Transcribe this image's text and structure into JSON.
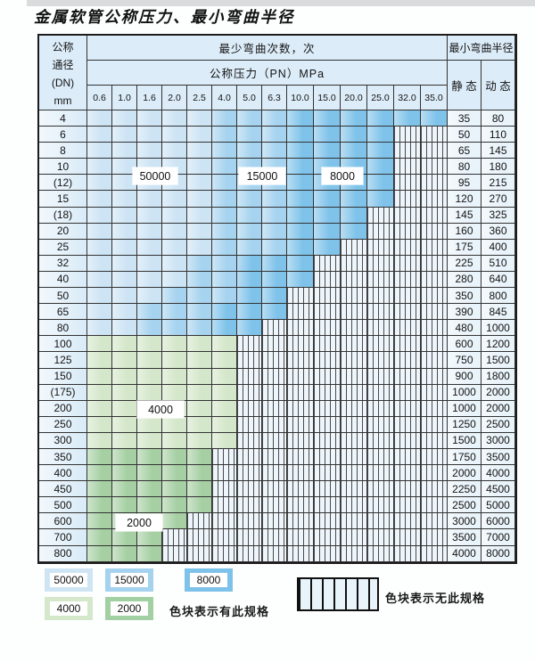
{
  "title": "金属软管公称压力、最小弯曲半径",
  "header": {
    "dn_lines": [
      "公称",
      "通径",
      "(DN)",
      "mm"
    ],
    "cycles_label": "最少弯曲次数，次",
    "pressure_label": "公称压力（PN）MPa",
    "pressures": [
      "0.6",
      "1.0",
      "1.6",
      "2.0",
      "2.5",
      "4.0",
      "5.0",
      "6.3",
      "10.0",
      "15.0",
      "20.0",
      "25.0",
      "32.0",
      "35.0"
    ],
    "radius_label": "最小弯曲半径",
    "static_label": "静 态",
    "dynamic_label": "动 态"
  },
  "zones": {
    "b1": {
      "label": "50000",
      "color": "#cde4f5"
    },
    "b2": {
      "label": "15000",
      "color": "#a6d3ef"
    },
    "b3": {
      "label": "8000",
      "color": "#7fc3ea"
    },
    "g1": {
      "label": "4000",
      "color": "#d4e7ca"
    },
    "g2": {
      "label": "2000",
      "color": "#a6d0a3"
    },
    "striped_meaning": "无此规格"
  },
  "legend": {
    "available_text": "色块表示有此规格",
    "unavailable_text": "色块表示无此规格"
  },
  "rows": [
    {
      "dn": "4",
      "static": "35",
      "dynamic": "80",
      "cells": [
        "b1",
        "b1",
        "b1",
        "b1",
        "b1",
        "b2",
        "b2",
        "b2",
        "b3",
        "b3",
        "b3",
        "b3",
        "b3",
        "b3"
      ]
    },
    {
      "dn": "6",
      "static": "50",
      "dynamic": "110",
      "cells": [
        "b1",
        "b1",
        "b1",
        "b1",
        "b1",
        "b2",
        "b2",
        "b2",
        "b3",
        "b3",
        "b3",
        "b3",
        "x",
        "x"
      ]
    },
    {
      "dn": "8",
      "static": "65",
      "dynamic": "145",
      "cells": [
        "b1",
        "b1",
        "b1",
        "b1",
        "b1",
        "b2",
        "b2",
        "b2",
        "b3",
        "b3",
        "b3",
        "b3",
        "x",
        "x"
      ]
    },
    {
      "dn": "10",
      "static": "80",
      "dynamic": "180",
      "cells": [
        "b1",
        "b1",
        "b1",
        "b1",
        "b1",
        "b2",
        "b2",
        "b2",
        "b3",
        "b3",
        "b3",
        "b3",
        "x",
        "x"
      ]
    },
    {
      "dn": "(12)",
      "static": "95",
      "dynamic": "215",
      "cells": [
        "b1",
        "b1",
        "b1",
        "b1",
        "b1",
        "b2",
        "b2",
        "b2",
        "b3",
        "b3",
        "b3",
        "b3",
        "x",
        "x"
      ]
    },
    {
      "dn": "15",
      "static": "120",
      "dynamic": "270",
      "cells": [
        "b1",
        "b1",
        "b1",
        "b1",
        "b1",
        "b2",
        "b2",
        "b2",
        "b3",
        "b3",
        "b3",
        "b3",
        "x",
        "x"
      ]
    },
    {
      "dn": "(18)",
      "static": "145",
      "dynamic": "325",
      "cells": [
        "b1",
        "b1",
        "b1",
        "b1",
        "b1",
        "b2",
        "b2",
        "b2",
        "b3",
        "b3",
        "b3",
        "x",
        "x",
        "x"
      ]
    },
    {
      "dn": "20",
      "static": "160",
      "dynamic": "360",
      "cells": [
        "b1",
        "b1",
        "b1",
        "b1",
        "b1",
        "b2",
        "b2",
        "b2",
        "b3",
        "b3",
        "b3",
        "x",
        "x",
        "x"
      ]
    },
    {
      "dn": "25",
      "static": "175",
      "dynamic": "400",
      "cells": [
        "b1",
        "b1",
        "b1",
        "b1",
        "b1",
        "b2",
        "b2",
        "b2",
        "b3",
        "b3",
        "x",
        "x",
        "x",
        "x"
      ]
    },
    {
      "dn": "32",
      "static": "225",
      "dynamic": "510",
      "cells": [
        "b1",
        "b1",
        "b1",
        "b1",
        "b2",
        "b2",
        "b3",
        "b3",
        "b3",
        "x",
        "x",
        "x",
        "x",
        "x"
      ]
    },
    {
      "dn": "40",
      "static": "280",
      "dynamic": "640",
      "cells": [
        "b1",
        "b1",
        "b1",
        "b1",
        "b2",
        "b2",
        "b3",
        "b3",
        "b3",
        "x",
        "x",
        "x",
        "x",
        "x"
      ]
    },
    {
      "dn": "50",
      "static": "350",
      "dynamic": "800",
      "cells": [
        "b1",
        "b1",
        "b1",
        "b2",
        "b2",
        "b2",
        "b3",
        "b3",
        "x",
        "x",
        "x",
        "x",
        "x",
        "x"
      ]
    },
    {
      "dn": "65",
      "static": "390",
      "dynamic": "845",
      "cells": [
        "b1",
        "b1",
        "b2",
        "b2",
        "b2",
        "b3",
        "b3",
        "b3",
        "x",
        "x",
        "x",
        "x",
        "x",
        "x"
      ]
    },
    {
      "dn": "80",
      "static": "480",
      "dynamic": "1000",
      "cells": [
        "b1",
        "b1",
        "b2",
        "b2",
        "b2",
        "b3",
        "b3",
        "x",
        "x",
        "x",
        "x",
        "x",
        "x",
        "x"
      ]
    },
    {
      "dn": "100",
      "static": "600",
      "dynamic": "1200",
      "cells": [
        "g1",
        "g1",
        "g1",
        "g1",
        "g1",
        "g1",
        "x",
        "x",
        "x",
        "x",
        "x",
        "x",
        "x",
        "x"
      ]
    },
    {
      "dn": "125",
      "static": "750",
      "dynamic": "1500",
      "cells": [
        "g1",
        "g1",
        "g1",
        "g1",
        "g1",
        "g1",
        "x",
        "x",
        "x",
        "x",
        "x",
        "x",
        "x",
        "x"
      ]
    },
    {
      "dn": "150",
      "static": "900",
      "dynamic": "1800",
      "cells": [
        "g1",
        "g1",
        "g1",
        "g1",
        "g1",
        "g1",
        "x",
        "x",
        "x",
        "x",
        "x",
        "x",
        "x",
        "x"
      ]
    },
    {
      "dn": "(175)",
      "static": "1000",
      "dynamic": "2000",
      "cells": [
        "g1",
        "g1",
        "g1",
        "g1",
        "g1",
        "g1",
        "x",
        "x",
        "x",
        "x",
        "x",
        "x",
        "x",
        "x"
      ]
    },
    {
      "dn": "200",
      "static": "1000",
      "dynamic": "2000",
      "cells": [
        "g1",
        "g1",
        "g1",
        "g1",
        "g1",
        "g1",
        "x",
        "x",
        "x",
        "x",
        "x",
        "x",
        "x",
        "x"
      ]
    },
    {
      "dn": "250",
      "static": "1250",
      "dynamic": "2500",
      "cells": [
        "g1",
        "g1",
        "g1",
        "g1",
        "g1",
        "g1",
        "x",
        "x",
        "x",
        "x",
        "x",
        "x",
        "x",
        "x"
      ]
    },
    {
      "dn": "300",
      "static": "1500",
      "dynamic": "3000",
      "cells": [
        "g1",
        "g1",
        "g1",
        "g1",
        "g1",
        "g1",
        "x",
        "x",
        "x",
        "x",
        "x",
        "x",
        "x",
        "x"
      ]
    },
    {
      "dn": "350",
      "static": "1750",
      "dynamic": "3500",
      "cells": [
        "g2",
        "g2",
        "g2",
        "g2",
        "g2",
        "x",
        "x",
        "x",
        "x",
        "x",
        "x",
        "x",
        "x",
        "x"
      ]
    },
    {
      "dn": "400",
      "static": "2000",
      "dynamic": "4000",
      "cells": [
        "g2",
        "g2",
        "g2",
        "g2",
        "g2",
        "x",
        "x",
        "x",
        "x",
        "x",
        "x",
        "x",
        "x",
        "x"
      ]
    },
    {
      "dn": "450",
      "static": "2250",
      "dynamic": "4500",
      "cells": [
        "g2",
        "g2",
        "g2",
        "g2",
        "g2",
        "x",
        "x",
        "x",
        "x",
        "x",
        "x",
        "x",
        "x",
        "x"
      ]
    },
    {
      "dn": "500",
      "static": "2500",
      "dynamic": "5000",
      "cells": [
        "g2",
        "g2",
        "g2",
        "g2",
        "g2",
        "x",
        "x",
        "x",
        "x",
        "x",
        "x",
        "x",
        "x",
        "x"
      ]
    },
    {
      "dn": "600",
      "static": "3000",
      "dynamic": "6000",
      "cells": [
        "g2",
        "g2",
        "g2",
        "g2",
        "x",
        "x",
        "x",
        "x",
        "x",
        "x",
        "x",
        "x",
        "x",
        "x"
      ]
    },
    {
      "dn": "700",
      "static": "3500",
      "dynamic": "7000",
      "cells": [
        "g2",
        "g2",
        "g2",
        "x",
        "x",
        "x",
        "x",
        "x",
        "x",
        "x",
        "x",
        "x",
        "x",
        "x"
      ]
    },
    {
      "dn": "800",
      "static": "4000",
      "dynamic": "8000",
      "cells": [
        "g2",
        "g2",
        "g2",
        "x",
        "x",
        "x",
        "x",
        "x",
        "x",
        "x",
        "x",
        "x",
        "x",
        "x"
      ]
    }
  ]
}
